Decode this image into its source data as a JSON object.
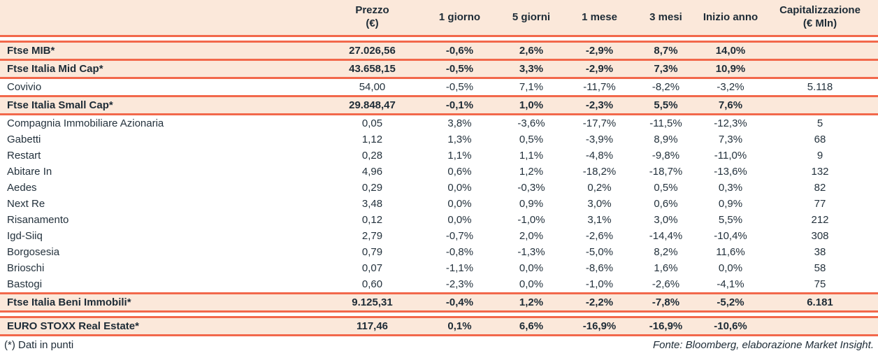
{
  "colors": {
    "band_background": "#fbe8da",
    "rule_line": "#f2684b",
    "text": "#1d2b36",
    "row_background": "#ffffff"
  },
  "table": {
    "columns": [
      "Prezzo\n(€)",
      "1 giorno",
      "5 giorni",
      "1 mese",
      "3 mesi",
      "Inizio anno",
      "Capitalizzazione\n(€ Mln)"
    ],
    "rows": [
      {
        "name": "Ftse MIB*",
        "type": "index",
        "gap_above": true,
        "cells": [
          "27.026,56",
          "-0,6%",
          "2,6%",
          "-2,9%",
          "8,7%",
          "14,0%",
          ""
        ]
      },
      {
        "name": "Ftse Italia Mid Cap*",
        "type": "index",
        "cells": [
          "43.658,15",
          "-0,5%",
          "3,3%",
          "-2,9%",
          "7,3%",
          "10,9%",
          ""
        ]
      },
      {
        "name": "Covivio",
        "type": "stock",
        "cells": [
          "54,00",
          "-0,5%",
          "7,1%",
          "-11,7%",
          "-8,2%",
          "-3,2%",
          "5.118"
        ]
      },
      {
        "name": "Ftse Italia Small Cap*",
        "type": "index",
        "cells": [
          "29.848,47",
          "-0,1%",
          "1,0%",
          "-2,3%",
          "5,5%",
          "7,6%",
          ""
        ]
      },
      {
        "name": "Compagnia Immobiliare Azionaria",
        "type": "stock",
        "cells": [
          "0,05",
          "3,8%",
          "-3,6%",
          "-17,7%",
          "-11,5%",
          "-12,3%",
          "5"
        ]
      },
      {
        "name": "Gabetti",
        "type": "stock",
        "cells": [
          "1,12",
          "1,3%",
          "0,5%",
          "-3,9%",
          "8,9%",
          "7,3%",
          "68"
        ]
      },
      {
        "name": "Restart",
        "type": "stock",
        "cells": [
          "0,28",
          "1,1%",
          "1,1%",
          "-4,8%",
          "-9,8%",
          "-11,0%",
          "9"
        ]
      },
      {
        "name": "Abitare In",
        "type": "stock",
        "cells": [
          "4,96",
          "0,6%",
          "1,2%",
          "-18,2%",
          "-18,7%",
          "-13,6%",
          "132"
        ]
      },
      {
        "name": "Aedes",
        "type": "stock",
        "cells": [
          "0,29",
          "0,0%",
          "-0,3%",
          "0,2%",
          "0,5%",
          "0,3%",
          "82"
        ]
      },
      {
        "name": "Next Re",
        "type": "stock",
        "cells": [
          "3,48",
          "0,0%",
          "0,9%",
          "3,0%",
          "0,6%",
          "0,9%",
          "77"
        ]
      },
      {
        "name": "Risanamento",
        "type": "stock",
        "cells": [
          "0,12",
          "0,0%",
          "-1,0%",
          "3,1%",
          "3,0%",
          "5,5%",
          "212"
        ]
      },
      {
        "name": "Igd-Siiq",
        "type": "stock",
        "cells": [
          "2,79",
          "-0,7%",
          "2,0%",
          "-2,6%",
          "-14,4%",
          "-10,4%",
          "308"
        ]
      },
      {
        "name": "Borgosesia",
        "type": "stock",
        "cells": [
          "0,79",
          "-0,8%",
          "-1,3%",
          "-5,0%",
          "8,2%",
          "11,6%",
          "38"
        ]
      },
      {
        "name": "Brioschi",
        "type": "stock",
        "cells": [
          "0,07",
          "-1,1%",
          "0,0%",
          "-8,6%",
          "1,6%",
          "0,0%",
          "58"
        ]
      },
      {
        "name": "Bastogi",
        "type": "stock",
        "cells": [
          "0,60",
          "-2,3%",
          "0,0%",
          "-1,0%",
          "-2,6%",
          "-4,1%",
          "75"
        ]
      },
      {
        "name": "Ftse Italia Beni Immobili*",
        "type": "index",
        "cells": [
          "9.125,31",
          "-0,4%",
          "1,2%",
          "-2,2%",
          "-7,8%",
          "-5,2%",
          "6.181"
        ]
      },
      {
        "name": "EURO STOXX Real Estate*",
        "type": "index",
        "gap_above": true,
        "cells": [
          "117,46",
          "0,1%",
          "6,6%",
          "-16,9%",
          "-16,9%",
          "-10,6%",
          ""
        ]
      }
    ]
  },
  "footer": {
    "note": "(*) Dati in punti",
    "source": "Fonte: Bloomberg, elaborazione Market Insight."
  }
}
